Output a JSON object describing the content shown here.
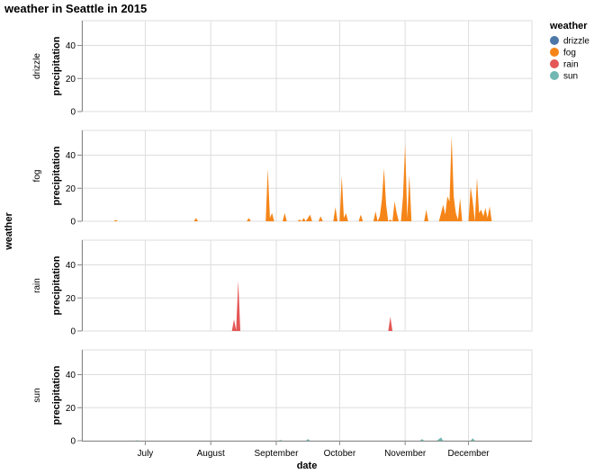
{
  "chart_data": {
    "type": "area",
    "title": "weather in Seattle in 2015",
    "facet_label": "weather",
    "xlabel": "date",
    "ylabel": "precipitation",
    "x_ticks": [
      "July",
      "August",
      "September",
      "October",
      "November",
      "December"
    ],
    "x_domain": [
      "2015-06-01",
      "2015-12-31"
    ],
    "y_domain": [
      0,
      55
    ],
    "y_ticks": [
      0,
      20,
      40
    ],
    "grid": true,
    "legend": {
      "title": "weather",
      "position": "top-right"
    },
    "colors": {
      "drizzle": "#4c78a8",
      "fog": "#f58518",
      "rain": "#e45756",
      "sun": "#72b7b2"
    },
    "facets": [
      {
        "name": "drizzle",
        "points": []
      },
      {
        "name": "fog",
        "points": [
          [
            "2015-06-16",
            0
          ],
          [
            "2015-06-17",
            0.8
          ],
          [
            "2015-06-18",
            0
          ],
          [
            "2015-07-24",
            0
          ],
          [
            "2015-07-25",
            2.0
          ],
          [
            "2015-07-26",
            0
          ],
          [
            "2015-08-18",
            0
          ],
          [
            "2015-08-19",
            2.0
          ],
          [
            "2015-08-20",
            0
          ],
          [
            "2015-08-27",
            0
          ],
          [
            "2015-08-28",
            31.8
          ],
          [
            "2015-08-29",
            2.0
          ],
          [
            "2015-08-30",
            5.0
          ],
          [
            "2015-08-31",
            0
          ],
          [
            "2015-09-04",
            0
          ],
          [
            "2015-09-05",
            5.0
          ],
          [
            "2015-09-06",
            0
          ],
          [
            "2015-09-11",
            0
          ],
          [
            "2015-09-12",
            1.0
          ],
          [
            "2015-09-13",
            0
          ],
          [
            "2015-09-14",
            2.0
          ],
          [
            "2015-09-15",
            0
          ],
          [
            "2015-09-17",
            4.0
          ],
          [
            "2015-09-18",
            0
          ],
          [
            "2015-09-21",
            0
          ],
          [
            "2015-09-22",
            3.0
          ],
          [
            "2015-09-23",
            0
          ],
          [
            "2015-09-28",
            0
          ],
          [
            "2015-09-29",
            8.6
          ],
          [
            "2015-09-30",
            0
          ],
          [
            "2015-10-01",
            0
          ],
          [
            "2015-10-02",
            27.4
          ],
          [
            "2015-10-03",
            2.0
          ],
          [
            "2015-10-04",
            5.0
          ],
          [
            "2015-10-05",
            0
          ],
          [
            "2015-10-10",
            0
          ],
          [
            "2015-10-11",
            4.0
          ],
          [
            "2015-10-12",
            0
          ],
          [
            "2015-10-17",
            0
          ],
          [
            "2015-10-18",
            6.0
          ],
          [
            "2015-10-19",
            0
          ],
          [
            "2015-10-20",
            3.0
          ],
          [
            "2015-10-21",
            13.0
          ],
          [
            "2015-10-22",
            32.0
          ],
          [
            "2015-10-23",
            10.0
          ],
          [
            "2015-10-24",
            0
          ],
          [
            "2015-10-25",
            1.0
          ],
          [
            "2015-10-26",
            0
          ],
          [
            "2015-10-27",
            12.0
          ],
          [
            "2015-10-28",
            5.0
          ],
          [
            "2015-10-29",
            0
          ],
          [
            "2015-10-30",
            0
          ],
          [
            "2015-10-31",
            15.0
          ],
          [
            "2015-11-01",
            46.7
          ],
          [
            "2015-11-02",
            2.0
          ],
          [
            "2015-11-03",
            27.9
          ],
          [
            "2015-11-04",
            0
          ],
          [
            "2015-11-10",
            0
          ],
          [
            "2015-11-11",
            7.0
          ],
          [
            "2015-11-12",
            0
          ],
          [
            "2015-11-17",
            0
          ],
          [
            "2015-11-18",
            5.0
          ],
          [
            "2015-11-19",
            10.0
          ],
          [
            "2015-11-20",
            4.0
          ],
          [
            "2015-11-21",
            15.0
          ],
          [
            "2015-11-22",
            12.0
          ],
          [
            "2015-11-23",
            51.6
          ],
          [
            "2015-11-24",
            15.0
          ],
          [
            "2015-11-25",
            5.0
          ],
          [
            "2015-11-26",
            1.0
          ],
          [
            "2015-11-27",
            14.0
          ],
          [
            "2015-11-28",
            0
          ],
          [
            "2015-12-01",
            0
          ],
          [
            "2015-12-02",
            21.0
          ],
          [
            "2015-12-03",
            12.0
          ],
          [
            "2015-12-04",
            0
          ],
          [
            "2015-12-05",
            26.4
          ],
          [
            "2015-12-06",
            5.0
          ],
          [
            "2015-12-07",
            7.0
          ],
          [
            "2015-12-08",
            3.0
          ],
          [
            "2015-12-09",
            8.0
          ],
          [
            "2015-12-10",
            2.0
          ],
          [
            "2015-12-11",
            9.0
          ],
          [
            "2015-12-12",
            0
          ]
        ]
      },
      {
        "name": "rain",
        "points": [
          [
            "2015-08-11",
            0
          ],
          [
            "2015-08-12",
            7.0
          ],
          [
            "2015-08-13",
            0.5
          ],
          [
            "2015-08-14",
            30.5
          ],
          [
            "2015-08-15",
            0
          ],
          [
            "2015-10-24",
            0
          ],
          [
            "2015-10-25",
            8.6
          ],
          [
            "2015-10-26",
            0
          ]
        ]
      },
      {
        "name": "sun",
        "points": [
          [
            "2015-06-26",
            0
          ],
          [
            "2015-06-27",
            0.3
          ],
          [
            "2015-06-28",
            0
          ],
          [
            "2015-09-02",
            0
          ],
          [
            "2015-09-03",
            0.5
          ],
          [
            "2015-09-04",
            0
          ],
          [
            "2015-09-15",
            0
          ],
          [
            "2015-09-16",
            1.0
          ],
          [
            "2015-09-17",
            0
          ],
          [
            "2015-11-08",
            0
          ],
          [
            "2015-11-09",
            1.0
          ],
          [
            "2015-11-10",
            0
          ],
          [
            "2015-11-16",
            0
          ],
          [
            "2015-11-17",
            1.0
          ],
          [
            "2015-11-18",
            2.0
          ],
          [
            "2015-11-19",
            0
          ],
          [
            "2015-12-02",
            0
          ],
          [
            "2015-12-03",
            1.5
          ],
          [
            "2015-12-04",
            0
          ]
        ]
      }
    ]
  }
}
